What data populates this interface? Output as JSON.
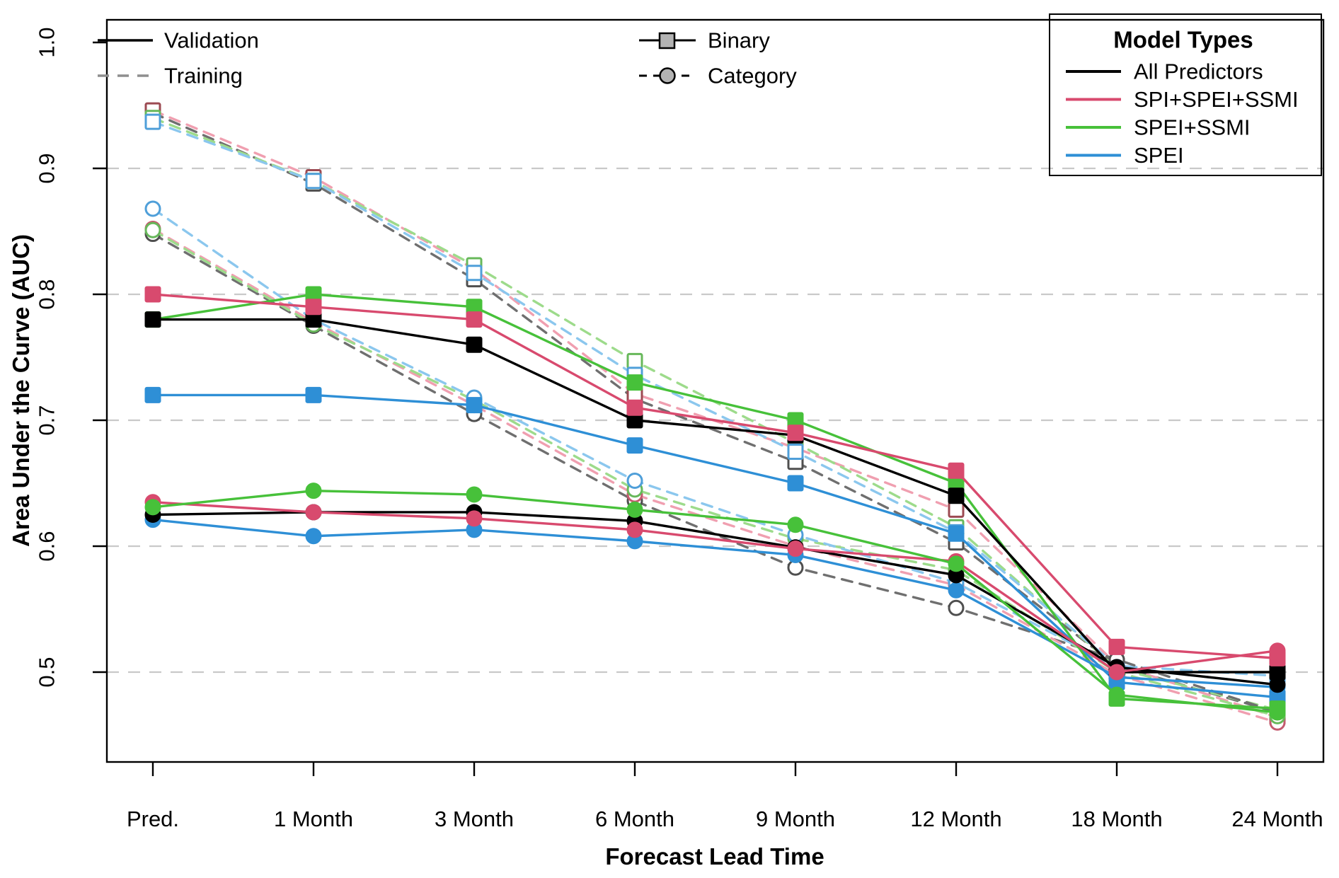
{
  "chart_data": {
    "type": "line",
    "xlabel": "Forecast Lead Time",
    "ylabel": "Area Under the Curve (AUC)",
    "categories": [
      "Pred.",
      "1 Month",
      "3 Month",
      "6 Month",
      "9 Month",
      "12 Month",
      "18 Month",
      "24 Month"
    ],
    "yticks": [
      0.5,
      0.6,
      0.7,
      0.8,
      0.9,
      1.0
    ],
    "grid_values": [
      0.5,
      0.6,
      0.7,
      0.8,
      0.9
    ],
    "ylim": [
      0.43,
      1.02
    ],
    "legend_position": "top",
    "style": {
      "grid_color": "#c9c9c9",
      "axis_color": "#000000",
      "legend_marker_fill": "#b3b3b3"
    },
    "legend": {
      "line_styles": [
        {
          "label": "Validation",
          "style": "solid",
          "color": "#000000"
        },
        {
          "label": "Training",
          "style": "dashed",
          "color": "#8f8f8f"
        }
      ],
      "marker_styles": [
        {
          "label": "Binary",
          "marker": "square",
          "style": "solid"
        },
        {
          "label": "Category",
          "marker": "circle",
          "style": "dashed"
        }
      ],
      "model_types_title": "Model Types",
      "model_types": [
        {
          "label": "All Predictors",
          "color": "#000000"
        },
        {
          "label": "SPI+SPEI+SSMI",
          "color": "#d84a6e"
        },
        {
          "label": "SPEI+SSMI",
          "color": "#47c13a"
        },
        {
          "label": "SPEI",
          "color": "#2e8fd6"
        }
      ]
    },
    "series": [
      {
        "id": "training-binary-all-predictors",
        "model": "All Predictors",
        "dataset": "Training",
        "encoding": "Binary",
        "color": "#6f6f6f",
        "marker_stroke": "#4f4f4f",
        "line": "dashed",
        "marker": "square",
        "fill": "open",
        "values": [
          0.944,
          0.888,
          0.812,
          0.717,
          0.667,
          0.603,
          0.505,
          0.468
        ]
      },
      {
        "id": "training-binary-spi-spei-ssmi",
        "model": "SPI+SPEI+SSMI",
        "dataset": "Training",
        "encoding": "Binary",
        "color": "#f09fb0",
        "marker_stroke": "#9c4a52",
        "line": "dashed",
        "marker": "square",
        "fill": "open",
        "values": [
          0.946,
          0.893,
          0.82,
          0.721,
          0.678,
          0.629,
          0.506,
          0.464
        ]
      },
      {
        "id": "training-binary-spei-ssmi",
        "model": "SPEI+SSMI",
        "dataset": "Training",
        "encoding": "Binary",
        "color": "#9ddb8b",
        "marker_stroke": "#67b85a",
        "line": "dashed",
        "marker": "square",
        "fill": "open",
        "values": [
          0.94,
          0.89,
          0.823,
          0.747,
          0.682,
          0.615,
          0.503,
          0.47
        ]
      },
      {
        "id": "training-binary-spei",
        "model": "SPEI",
        "dataset": "Training",
        "encoding": "Binary",
        "color": "#8bc7ee",
        "marker_stroke": "#4f9fd9",
        "line": "dashed",
        "marker": "square",
        "fill": "open",
        "values": [
          0.937,
          0.89,
          0.817,
          0.736,
          0.675,
          0.611,
          0.505,
          0.497
        ]
      },
      {
        "id": "training-category-all-predictors",
        "model": "All Predictors",
        "dataset": "Training",
        "encoding": "Category",
        "color": "#6f6f6f",
        "marker_stroke": "#4f4f4f",
        "line": "dashed",
        "marker": "circle",
        "fill": "open",
        "values": [
          0.848,
          0.775,
          0.705,
          0.636,
          0.583,
          0.551,
          0.51,
          0.468
        ]
      },
      {
        "id": "training-category-spi-spei-ssmi",
        "model": "SPI+SPEI+SSMI",
        "dataset": "Training",
        "encoding": "Category",
        "color": "#f09fb0",
        "marker_stroke": "#c45a6e",
        "line": "dashed",
        "marker": "circle",
        "fill": "open",
        "values": [
          0.852,
          0.778,
          0.712,
          0.641,
          0.6,
          0.569,
          0.498,
          0.46
        ]
      },
      {
        "id": "training-category-spei-ssmi",
        "model": "SPEI+SSMI",
        "dataset": "Training",
        "encoding": "Category",
        "color": "#9ddb8b",
        "marker_stroke": "#67b85a",
        "line": "dashed",
        "marker": "circle",
        "fill": "open",
        "values": [
          0.851,
          0.776,
          0.716,
          0.645,
          0.606,
          0.581,
          0.5,
          0.465
        ]
      },
      {
        "id": "training-category-spei",
        "model": "SPEI",
        "dataset": "Training",
        "encoding": "Category",
        "color": "#8bc7ee",
        "marker_stroke": "#4f9fd9",
        "line": "dashed",
        "marker": "circle",
        "fill": "open",
        "values": [
          0.868,
          0.78,
          0.718,
          0.652,
          0.609,
          0.571,
          0.504,
          0.49
        ]
      },
      {
        "id": "validation-binary-spei",
        "model": "SPEI",
        "dataset": "Validation",
        "encoding": "Binary",
        "color": "#2e8fd6",
        "marker_stroke": "#2e8fd6",
        "line": "solid",
        "marker": "square",
        "fill": "solid",
        "values": [
          0.72,
          0.72,
          0.712,
          0.68,
          0.65,
          0.61,
          0.492,
          0.48
        ]
      },
      {
        "id": "validation-binary-spei-ssmi",
        "model": "SPEI+SSMI",
        "dataset": "Validation",
        "encoding": "Binary",
        "color": "#47c13a",
        "marker_stroke": "#47c13a",
        "line": "solid",
        "marker": "square",
        "fill": "solid",
        "values": [
          0.78,
          0.8,
          0.79,
          0.73,
          0.7,
          0.65,
          0.479,
          0.471
        ]
      },
      {
        "id": "validation-binary-all-predictors",
        "model": "All Predictors",
        "dataset": "Validation",
        "encoding": "Binary",
        "color": "#000000",
        "marker_stroke": "#000000",
        "line": "solid",
        "marker": "square",
        "fill": "solid",
        "values": [
          0.78,
          0.78,
          0.76,
          0.7,
          0.688,
          0.64,
          0.5,
          0.5
        ]
      },
      {
        "id": "validation-binary-spi-spei-ssmi",
        "model": "SPI+SPEI+SSMI",
        "dataset": "Validation",
        "encoding": "Binary",
        "color": "#d84a6e",
        "marker_stroke": "#d84a6e",
        "line": "solid",
        "marker": "square",
        "fill": "solid",
        "values": [
          0.8,
          0.79,
          0.78,
          0.71,
          0.69,
          0.66,
          0.52,
          0.511
        ]
      },
      {
        "id": "validation-category-spei",
        "model": "SPEI",
        "dataset": "Validation",
        "encoding": "Category",
        "color": "#2e8fd6",
        "marker_stroke": "#2e8fd6",
        "line": "solid",
        "marker": "circle",
        "fill": "solid",
        "values": [
          0.621,
          0.608,
          0.613,
          0.604,
          0.593,
          0.565,
          0.496,
          0.488
        ]
      },
      {
        "id": "validation-category-all-predictors",
        "model": "All Predictors",
        "dataset": "Validation",
        "encoding": "Category",
        "color": "#000000",
        "marker_stroke": "#000000",
        "line": "solid",
        "marker": "circle",
        "fill": "solid",
        "values": [
          0.625,
          0.627,
          0.627,
          0.62,
          0.599,
          0.577,
          0.504,
          0.49
        ]
      },
      {
        "id": "validation-category-spi-spei-ssmi",
        "model": "SPI+SPEI+SSMI",
        "dataset": "Validation",
        "encoding": "Category",
        "color": "#d84a6e",
        "marker_stroke": "#d84a6e",
        "line": "solid",
        "marker": "circle",
        "fill": "solid",
        "values": [
          0.635,
          0.627,
          0.622,
          0.613,
          0.598,
          0.588,
          0.5,
          0.517
        ]
      },
      {
        "id": "validation-category-spei-ssmi",
        "model": "SPEI+SSMI",
        "dataset": "Validation",
        "encoding": "Category",
        "color": "#47c13a",
        "marker_stroke": "#47c13a",
        "line": "solid",
        "marker": "circle",
        "fill": "solid",
        "values": [
          0.631,
          0.644,
          0.641,
          0.629,
          0.617,
          0.586,
          0.482,
          0.468
        ]
      }
    ]
  }
}
